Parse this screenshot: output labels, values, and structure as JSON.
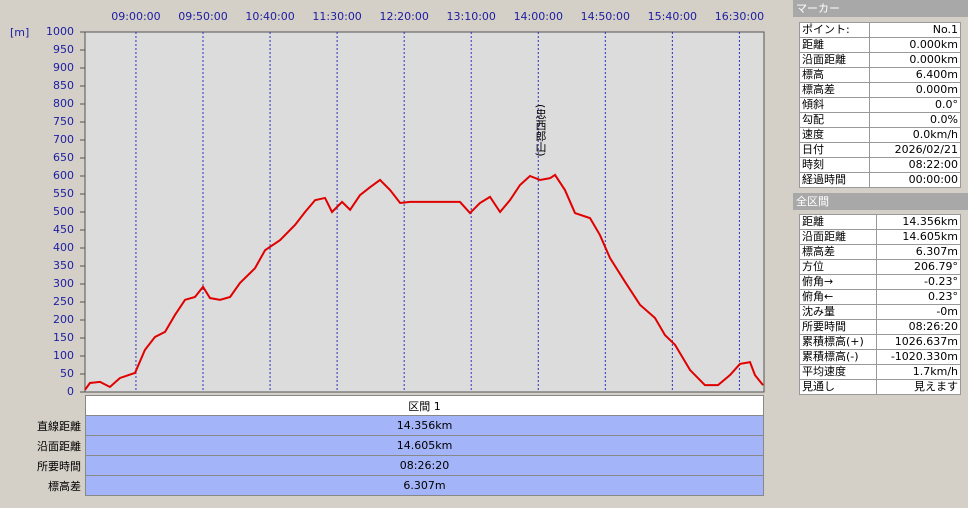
{
  "chart_data": {
    "type": "line",
    "y_label": "[m]",
    "x": [
      502,
      505.7,
      513.2,
      520.6,
      528.1,
      539.3,
      546.7,
      554.2,
      561.7,
      569.1,
      576.6,
      584.0,
      590.0,
      595.2,
      602.7,
      610.2,
      617.6,
      628.8,
      636.3,
      647.5,
      658.6,
      666.1,
      673.6,
      681.0,
      686.2,
      693.7,
      699.7,
      707.1,
      714.6,
      722.0,
      729.5,
      737.0,
      744.4,
      759.3,
      781.6,
      789.1,
      796.5,
      804.0,
      811.5,
      818.9,
      826.4,
      833.8,
      841.3,
      848.8,
      852.5,
      859.9,
      867.4,
      878.6,
      886.0,
      893.5,
      904.7,
      915.9,
      927.0,
      934.5,
      942.0,
      953.2,
      964.3,
      974.0,
      983.0,
      990.4,
      997.9,
      1001.6,
      1007.6
    ],
    "series": [
      {
        "color": "#e00000",
        "values": [
          6,
          25,
          28,
          14,
          39,
          53,
          117,
          153,
          167,
          214,
          256,
          264,
          292,
          261,
          256,
          264,
          303,
          344,
          394,
          422,
          464,
          500,
          533,
          539,
          500,
          528,
          506,
          547,
          569,
          589,
          561,
          525,
          528,
          528,
          528,
          497,
          525,
          542,
          500,
          533,
          575,
          600,
          589,
          594,
          603,
          561,
          497,
          483,
          436,
          372,
          306,
          242,
          206,
          158,
          131,
          61,
          19,
          19,
          47,
          78,
          83,
          47,
          19
        ]
      }
    ],
    "xlim": [
      502,
      1008.33
    ],
    "xticks": [
      {
        "value": 540,
        "label": "09:00:00"
      },
      {
        "value": 590,
        "label": "09:50:00"
      },
      {
        "value": 640,
        "label": "10:40:00"
      },
      {
        "value": 690,
        "label": "11:30:00"
      },
      {
        "value": 740,
        "label": "12:20:00"
      },
      {
        "value": 790,
        "label": "13:10:00"
      },
      {
        "value": 840,
        "label": "14:00:00"
      },
      {
        "value": 890,
        "label": "14:50:00"
      },
      {
        "value": 940,
        "label": "15:40:00"
      },
      {
        "value": 990,
        "label": "16:30:00"
      }
    ],
    "ylim": [
      0,
      1000
    ],
    "yticks": [
      0,
      50,
      100,
      150,
      200,
      250,
      300,
      350,
      400,
      450,
      500,
      550,
      600,
      650,
      700,
      750,
      800,
      850,
      900,
      950,
      1000
    ],
    "grid": "x",
    "annotations": [
      {
        "text": "(忠西郎山)",
        "x": 841.3
      }
    ]
  },
  "section_table": {
    "header": "区間 1",
    "rows": [
      [
        "直線距離",
        "14.356km"
      ],
      [
        "沿面距離",
        "14.605km"
      ],
      [
        "所要時間",
        "08:26:20"
      ],
      [
        "標高差",
        "6.307m"
      ]
    ]
  },
  "marker_panel": {
    "title": "マーカー",
    "rows": [
      [
        "ポイント:",
        "No.1"
      ],
      [
        "距離",
        "0.000km"
      ],
      [
        "沿面距離",
        "0.000km"
      ],
      [
        "標高",
        "6.400m"
      ],
      [
        "標高差",
        "0.000m"
      ],
      [
        "傾斜",
        "0.0°"
      ],
      [
        "勾配",
        "0.0%"
      ],
      [
        "速度",
        "0.0km/h"
      ],
      [
        "日付",
        "2026/02/21"
      ],
      [
        "時刻",
        "08:22:00"
      ],
      [
        "経過時間",
        "00:00:00"
      ]
    ]
  },
  "total_panel": {
    "title": "全区間",
    "rows": [
      [
        "距離",
        "14.356km"
      ],
      [
        "沿面距離",
        "14.605km"
      ],
      [
        "標高差",
        "6.307m"
      ],
      [
        "方位",
        "206.79°"
      ],
      [
        "俯角→",
        "-0.23°"
      ],
      [
        "俯角←",
        "0.23°"
      ],
      [
        "沈み量",
        "-0m"
      ],
      [
        "所要時間",
        "08:26:20"
      ],
      [
        "累積標高(+)",
        "1026.637m"
      ],
      [
        "累積標高(-)",
        "-1020.330m"
      ],
      [
        "平均速度",
        "1.7km/h"
      ],
      [
        "見通し",
        "見えます"
      ]
    ]
  }
}
